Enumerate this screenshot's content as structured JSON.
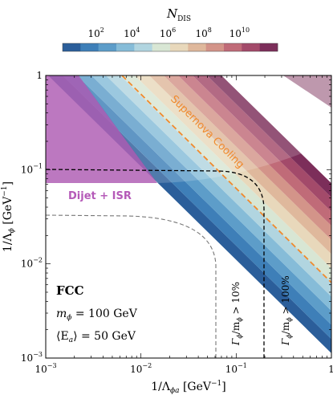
{
  "chart_data": {
    "type": "heatmap",
    "colorbar": {
      "label_main": "N",
      "label_sub": "DIS",
      "ticks": [
        {
          "base": "10",
          "exp": "2",
          "value": 100
        },
        {
          "base": "10",
          "exp": "4",
          "value": 10000
        },
        {
          "base": "10",
          "exp": "6",
          "value": 1000000
        },
        {
          "base": "10",
          "exp": "8",
          "value": 100000000
        },
        {
          "base": "10",
          "exp": "10",
          "value": 10000000000
        }
      ],
      "log_range": [
        0,
        12
      ],
      "colors": [
        "#2b5e9a",
        "#3e7fb8",
        "#5d9dc9",
        "#86bcd8",
        "#b1d5e0",
        "#d8e6d4",
        "#e8d8bb",
        "#dfb89c",
        "#d39489",
        "#c06b78",
        "#a34a6a",
        "#7c2e5a"
      ]
    },
    "x_axis": {
      "label": "1/Λ",
      "label_sub": "ϕa",
      "label_unit": " [GeV",
      "label_unit_exp": "−1",
      "label_close": "]",
      "scale": "log",
      "range": [
        0.001,
        1
      ],
      "ticks": [
        {
          "base": "10",
          "exp": "−3"
        },
        {
          "base": "10",
          "exp": "−2"
        },
        {
          "base": "10",
          "exp": "−1"
        },
        {
          "base": "1",
          "exp": ""
        }
      ]
    },
    "y_axis": {
      "label": "1/Λ",
      "label_sub": "ϕ",
      "label_unit": " [GeV",
      "label_unit_exp": "−1",
      "label_close": "]",
      "scale": "log",
      "range": [
        0.001,
        1
      ],
      "ticks": [
        {
          "base": "10",
          "exp": "−3"
        },
        {
          "base": "10",
          "exp": "−2"
        },
        {
          "base": "10",
          "exp": "−1"
        },
        {
          "base": "1",
          "exp": ""
        }
      ]
    },
    "regions": {
      "supernova": {
        "label": "Supernova Cooling",
        "color": "#f08a2c"
      },
      "dijet": {
        "label": "Dijet + ISR",
        "color": "#b55ab8"
      }
    },
    "contours": {
      "width_100": {
        "lhs": "Γ",
        "lhs_sub": "ϕ",
        "mid": "/m",
        "mid_sub": "ϕ",
        "rhs": " > 100%",
        "x_value": 0.2
      },
      "width_10": {
        "lhs": "Γ",
        "lhs_sub": "ϕ",
        "mid": "/m",
        "mid_sub": "ϕ",
        "rhs": " > 10%",
        "x_value": 0.063
      }
    },
    "annotations": {
      "collider": "FCC",
      "mass": {
        "sym": "m",
        "sub": "ϕ",
        "eq": " = 100 GeV"
      },
      "energy": {
        "open": "⟨E",
        "sub": "a",
        "close": "⟩ = 50 GeV"
      }
    }
  }
}
